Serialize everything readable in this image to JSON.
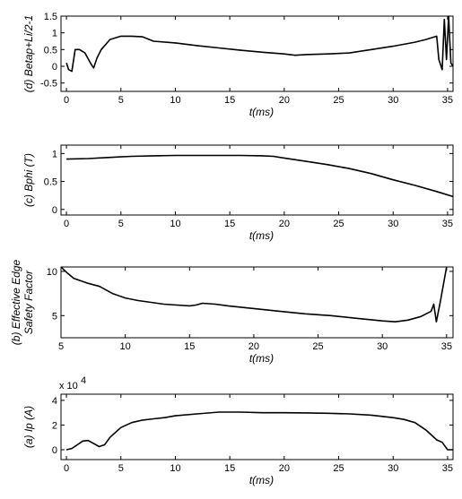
{
  "chart_data": [
    {
      "type": "line",
      "panel": "d",
      "ylabel": "(d) Betap+Li/2-1",
      "xlabel": "t(ms)",
      "xlim": [
        -0.5,
        35.5
      ],
      "ylim": [
        -0.75,
        1.5
      ],
      "xticks": [
        0,
        5,
        10,
        15,
        20,
        25,
        30,
        35
      ],
      "yticks": [
        -0.5,
        0,
        0.5,
        1,
        1.5
      ],
      "ytick_labels": [
        "-0.5",
        "0",
        "0.5",
        "1",
        "1.5"
      ],
      "series": [
        {
          "x": [
            0,
            0.2,
            0.5,
            0.8,
            1.2,
            1.7,
            2.2,
            2.5,
            2.8,
            3.2,
            4,
            5,
            6,
            7,
            8,
            10,
            12,
            14,
            16,
            18,
            20,
            21,
            22,
            24,
            26,
            28,
            30,
            32,
            33,
            34,
            34.2,
            34.5,
            34.7,
            34.9,
            35.1,
            35.3,
            35.5
          ],
          "y": [
            0.1,
            -0.1,
            -0.15,
            0.5,
            0.5,
            0.4,
            0.1,
            -0.05,
            0.25,
            0.5,
            0.8,
            0.9,
            0.9,
            0.88,
            0.75,
            0.7,
            0.62,
            0.55,
            0.48,
            0.42,
            0.37,
            0.33,
            0.35,
            0.37,
            0.4,
            0.5,
            0.6,
            0.72,
            0.8,
            0.9,
            0.2,
            -0.1,
            1.4,
            0.2,
            1.5,
            0.1,
            0.0
          ]
        }
      ]
    },
    {
      "type": "line",
      "panel": "c",
      "ylabel": "(c) Bphi (T)",
      "xlabel": "t(ms)",
      "xlim": [
        -0.5,
        35.5
      ],
      "ylim": [
        -0.1,
        1.15
      ],
      "xticks": [
        0,
        5,
        10,
        15,
        20,
        25,
        30,
        35
      ],
      "yticks": [
        0,
        0.5,
        1
      ],
      "ytick_labels": [
        "0",
        "0.5",
        "1"
      ],
      "series": [
        {
          "x": [
            0,
            2,
            4,
            6,
            8,
            10,
            12,
            14,
            16,
            18,
            19,
            20,
            22,
            24,
            26,
            28,
            30,
            32,
            34,
            35.5
          ],
          "y": [
            0.9,
            0.91,
            0.93,
            0.95,
            0.96,
            0.965,
            0.965,
            0.965,
            0.965,
            0.96,
            0.95,
            0.92,
            0.86,
            0.8,
            0.73,
            0.64,
            0.53,
            0.43,
            0.32,
            0.23
          ]
        }
      ]
    },
    {
      "type": "line",
      "panel": "b",
      "ylabel": [
        "(b) Effective Edge",
        "Safety Factor"
      ],
      "xlabel": "t(ms)",
      "xlim": [
        5,
        35.5
      ],
      "ylim": [
        2.5,
        10.5
      ],
      "xticks": [
        5,
        10,
        15,
        20,
        25,
        30,
        35
      ],
      "yticks": [
        5,
        10
      ],
      "ytick_labels": [
        "5",
        "10"
      ],
      "series": [
        {
          "x": [
            5,
            5.5,
            6,
            7,
            8,
            9,
            10,
            11,
            12,
            13,
            14,
            15,
            15.5,
            16,
            17,
            18,
            20,
            22,
            24,
            26,
            28,
            30,
            31,
            32,
            33,
            33.8,
            34,
            34.2,
            34.5,
            35
          ],
          "y": [
            10.5,
            9.8,
            9.2,
            8.7,
            8.3,
            7.5,
            7.0,
            6.7,
            6.5,
            6.3,
            6.2,
            6.1,
            6.2,
            6.4,
            6.3,
            6.1,
            5.8,
            5.5,
            5.2,
            5.0,
            4.7,
            4.4,
            4.3,
            4.5,
            4.9,
            5.5,
            6.3,
            4.3,
            6.5,
            10.5
          ]
        }
      ]
    },
    {
      "type": "line",
      "panel": "a",
      "ylabel": "(a) Ip (A)",
      "xlabel": "t(ms)",
      "exponent_label": "x 10",
      "exponent_power": "4",
      "xlim": [
        -0.5,
        35.5
      ],
      "ylim": [
        -0.8,
        4.5
      ],
      "xticks": [
        0,
        5,
        10,
        15,
        20,
        25,
        30,
        35
      ],
      "yticks": [
        0,
        2,
        4
      ],
      "ytick_labels": [
        "0",
        "2",
        "4"
      ],
      "series": [
        {
          "x": [
            0,
            0.5,
            1,
            1.5,
            2,
            2.5,
            3,
            3.5,
            4,
            5,
            6,
            7,
            8,
            9,
            10,
            12,
            14,
            16,
            18,
            20,
            22,
            24,
            26,
            28,
            30,
            31,
            32,
            33,
            34,
            34.5,
            35,
            35.5
          ],
          "y": [
            0,
            0.1,
            0.4,
            0.7,
            0.75,
            0.5,
            0.25,
            0.4,
            1.0,
            1.8,
            2.2,
            2.4,
            2.5,
            2.6,
            2.75,
            2.9,
            3.05,
            3.05,
            3.0,
            3.0,
            2.98,
            2.95,
            2.9,
            2.8,
            2.6,
            2.45,
            2.2,
            1.6,
            0.8,
            0.6,
            0.0,
            0.0
          ]
        }
      ]
    }
  ]
}
